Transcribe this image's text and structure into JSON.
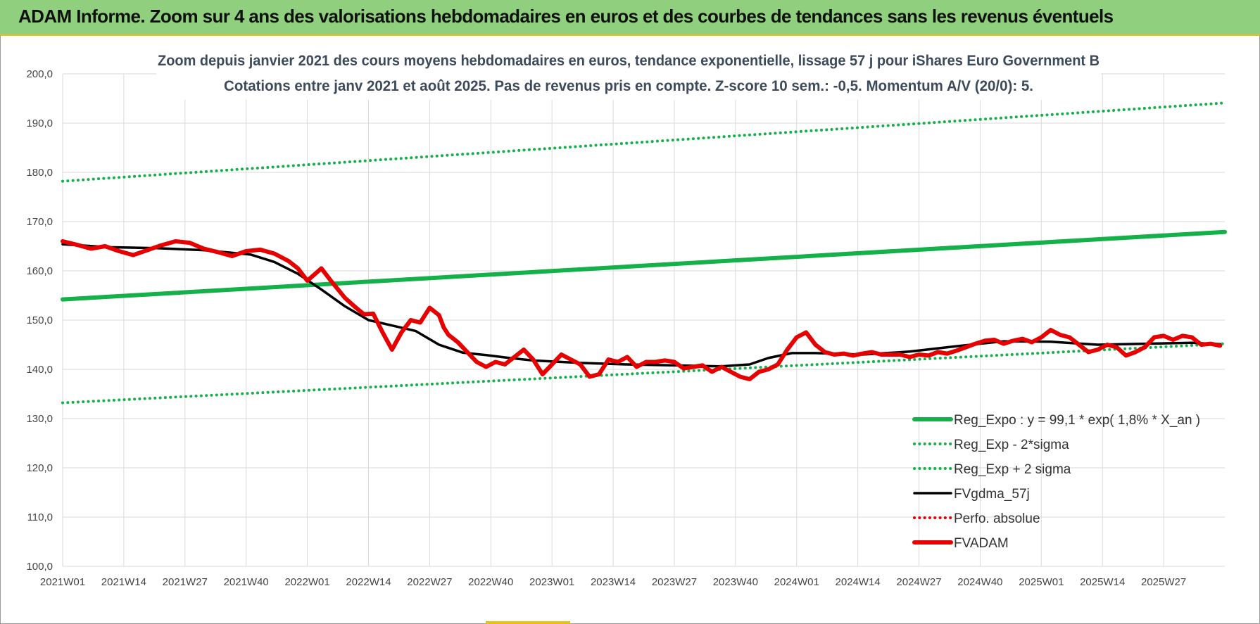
{
  "banner": {
    "title": "ADAM Informe. Zoom sur 4 ans des valorisations hebdomadaires en euros et des courbes de tendances sans les revenus éventuels",
    "color": "#8fcf7d",
    "accent": "#e8c21a"
  },
  "chart_data": {
    "type": "line",
    "title_lines": [
      "Zoom depuis janvier 2021 des cours moyens hebdomadaires en euros, tendance exponentielle, lissage 57 j pour iShares Euro Government B",
      "Cotations entre janv 2021 et août 2025.  Pas de revenus pris en compte. Z-score 10 sem.: -0,5. Momentum A/V (20/0): 5."
    ],
    "xlabel": "",
    "ylabel": "",
    "ylim": [
      100,
      200
    ],
    "y_ticks": [
      "100,0",
      "110,0",
      "120,0",
      "130,0",
      "140,0",
      "150,0",
      "160,0",
      "170,0",
      "180,0",
      "190,0",
      "200,0"
    ],
    "x_tick_labels": [
      "2021W01",
      "2021W14",
      "2021W27",
      "2021W40",
      "2022W01",
      "2022W14",
      "2022W27",
      "2022W40",
      "2023W01",
      "2023W14",
      "2023W27",
      "2023W40",
      "2024W01",
      "2024W14",
      "2024W27",
      "2024W40",
      "2025W01",
      "2025W14",
      "2025W27"
    ],
    "x_range_weeks": [
      0,
      247
    ],
    "grid": true,
    "legend_position": "bottom-right",
    "series": [
      {
        "name": "Reg_Expo : y = 99,1 * exp( 1,8% *  X_an )",
        "style": "solid-thick",
        "color": "#14b04a",
        "x_weeks": [
          0,
          247
        ],
        "values": [
          154.2,
          167.9
        ]
      },
      {
        "name": "Reg_Exp - 2*sigma",
        "style": "dotted",
        "color": "#14b04a",
        "x_weeks": [
          0,
          247
        ],
        "values": [
          133.2,
          145.2
        ]
      },
      {
        "name": "Reg_Exp + 2 sigma",
        "style": "dotted",
        "color": "#14b04a",
        "x_weeks": [
          0,
          247
        ],
        "values": [
          178.2,
          194.1
        ]
      },
      {
        "name": "FVgdma_57j",
        "style": "solid",
        "color": "#000000",
        "x_weeks": [
          0,
          10,
          20,
          30,
          40,
          45,
          50,
          55,
          60,
          65,
          70,
          75,
          80,
          85,
          90,
          95,
          100,
          110,
          120,
          130,
          140,
          146,
          150,
          155,
          160,
          170,
          180,
          190,
          200,
          210,
          220,
          230,
          240,
          246
        ],
        "values": [
          165.4,
          164.8,
          164.6,
          164.2,
          163.3,
          161.8,
          159.4,
          156.2,
          152.8,
          150.0,
          148.9,
          147.8,
          145.0,
          143.4,
          142.9,
          142.3,
          141.8,
          141.3,
          141.0,
          140.8,
          140.6,
          141.0,
          142.3,
          143.3,
          143.3,
          143.0,
          143.6,
          144.7,
          145.7,
          145.6,
          145.0,
          145.2,
          145.4,
          145.1
        ]
      },
      {
        "name": "Perfo. absolue",
        "style": "dotted",
        "color": "#e60000",
        "x_weeks": [],
        "values": []
      },
      {
        "name": "FVADAM",
        "style": "solid-thick",
        "color": "#e60000",
        "x_weeks": [
          0,
          3,
          6,
          9,
          12,
          15,
          18,
          21,
          24,
          27,
          30,
          33,
          36,
          39,
          42,
          45,
          48,
          50,
          52,
          55,
          57,
          60,
          62,
          64,
          66,
          68,
          70,
          72,
          74,
          76,
          78,
          80,
          81,
          82,
          84,
          86,
          88,
          90,
          92,
          94,
          96,
          98,
          100,
          102,
          104,
          106,
          108,
          110,
          112,
          114,
          116,
          118,
          120,
          122,
          124,
          126,
          128,
          130,
          132,
          134,
          136,
          138,
          140,
          142,
          144,
          146,
          148,
          150,
          152,
          154,
          156,
          158,
          160,
          162,
          164,
          166,
          168,
          170,
          172,
          174,
          176,
          178,
          180,
          182,
          184,
          186,
          188,
          190,
          192,
          194,
          196,
          198,
          200,
          202,
          204,
          206,
          208,
          210,
          212,
          214,
          216,
          218,
          220,
          222,
          224,
          226,
          228,
          230,
          232,
          234,
          236,
          238,
          240,
          242,
          244,
          246
        ],
        "values": [
          166.0,
          165.3,
          164.5,
          165.0,
          164.0,
          163.2,
          164.2,
          165.2,
          166.0,
          165.7,
          164.5,
          163.8,
          163.0,
          164.0,
          164.3,
          163.5,
          162.0,
          160.5,
          158.0,
          160.5,
          158.0,
          154.5,
          152.8,
          151.2,
          151.3,
          147.5,
          144.0,
          147.5,
          150.0,
          149.5,
          152.5,
          151.0,
          148.5,
          147.0,
          145.5,
          143.5,
          141.5,
          140.5,
          141.5,
          141.0,
          142.5,
          144.0,
          142.0,
          139.0,
          141.0,
          143.0,
          142.0,
          141.0,
          138.5,
          139.0,
          142.0,
          141.5,
          142.5,
          140.5,
          141.5,
          141.5,
          141.8,
          141.5,
          140.2,
          140.5,
          140.8,
          139.5,
          140.5,
          139.5,
          138.5,
          138.0,
          139.5,
          140.0,
          141.0,
          144.0,
          146.5,
          147.5,
          145.0,
          143.5,
          143.0,
          143.2,
          142.8,
          143.2,
          143.5,
          143.0,
          143.0,
          143.0,
          142.5,
          143.0,
          142.8,
          143.5,
          143.2,
          143.8,
          144.5,
          145.2,
          145.8,
          146.0,
          145.2,
          145.8,
          146.2,
          145.5,
          146.5,
          148.0,
          147.0,
          146.5,
          145.0,
          143.5,
          144.0,
          145.0,
          144.5,
          142.8,
          143.5,
          144.5,
          146.5,
          146.8,
          146.0,
          146.8,
          146.5,
          145.0,
          145.2,
          144.8
        ]
      }
    ]
  }
}
